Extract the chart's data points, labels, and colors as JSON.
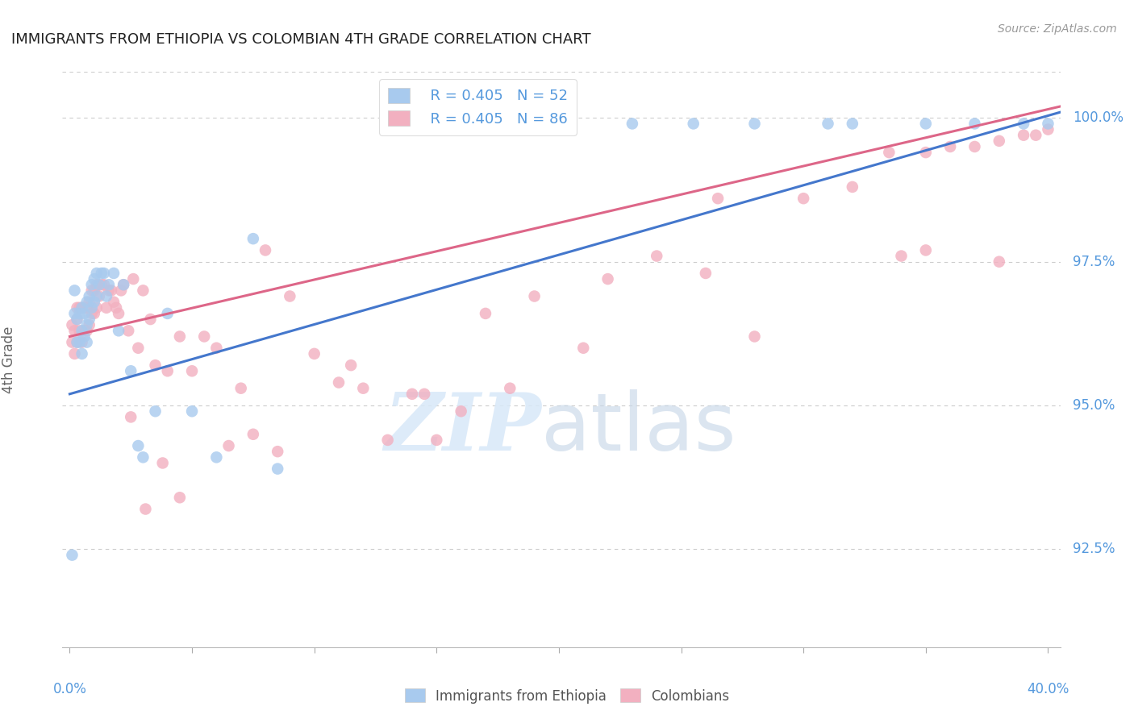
{
  "title": "IMMIGRANTS FROM ETHIOPIA VS COLOMBIAN 4TH GRADE CORRELATION CHART",
  "source": "Source: ZipAtlas.com",
  "ylabel": "4th Grade",
  "ytick_labels": [
    "100.0%",
    "97.5%",
    "95.0%",
    "92.5%"
  ],
  "ytick_vals": [
    1.0,
    0.975,
    0.95,
    0.925
  ],
  "ymin": 0.908,
  "ymax": 1.008,
  "xmin": -0.003,
  "xmax": 0.405,
  "legend_blue_R": "R = 0.405",
  "legend_blue_N": "N = 52",
  "legend_pink_R": "R = 0.405",
  "legend_pink_N": "N = 86",
  "watermark_zip": "ZIP",
  "watermark_atlas": "atlas",
  "blue_color": "#A8CAEE",
  "pink_color": "#F2B0C0",
  "blue_line_color": "#4477CC",
  "pink_line_color": "#DD6688",
  "tick_color": "#5599DD",
  "background_color": "#FFFFFF",
  "grid_color": "#CCCCCC",
  "blue_scatter_x": [
    0.001,
    0.002,
    0.002,
    0.003,
    0.003,
    0.004,
    0.004,
    0.005,
    0.005,
    0.005,
    0.006,
    0.006,
    0.007,
    0.007,
    0.007,
    0.008,
    0.008,
    0.009,
    0.009,
    0.01,
    0.01,
    0.011,
    0.011,
    0.012,
    0.013,
    0.014,
    0.015,
    0.016,
    0.018,
    0.02,
    0.022,
    0.025,
    0.028,
    0.03,
    0.035,
    0.04,
    0.05,
    0.06,
    0.075,
    0.085,
    0.16,
    0.175,
    0.2,
    0.23,
    0.255,
    0.28,
    0.31,
    0.32,
    0.35,
    0.37,
    0.39,
    0.4
  ],
  "blue_scatter_y": [
    0.924,
    0.966,
    0.97,
    0.961,
    0.965,
    0.961,
    0.966,
    0.959,
    0.963,
    0.967,
    0.962,
    0.966,
    0.961,
    0.964,
    0.968,
    0.965,
    0.969,
    0.967,
    0.971,
    0.968,
    0.972,
    0.969,
    0.973,
    0.971,
    0.973,
    0.973,
    0.969,
    0.971,
    0.973,
    0.963,
    0.971,
    0.956,
    0.943,
    0.941,
    0.949,
    0.966,
    0.949,
    0.941,
    0.979,
    0.939,
    0.999,
    0.999,
    0.999,
    0.999,
    0.999,
    0.999,
    0.999,
    0.999,
    0.999,
    0.999,
    0.999,
    0.999
  ],
  "pink_scatter_x": [
    0.001,
    0.001,
    0.002,
    0.002,
    0.003,
    0.003,
    0.003,
    0.004,
    0.004,
    0.005,
    0.005,
    0.006,
    0.006,
    0.007,
    0.007,
    0.008,
    0.008,
    0.009,
    0.009,
    0.01,
    0.01,
    0.011,
    0.011,
    0.012,
    0.013,
    0.014,
    0.015,
    0.016,
    0.017,
    0.018,
    0.019,
    0.02,
    0.021,
    0.022,
    0.024,
    0.026,
    0.028,
    0.03,
    0.033,
    0.04,
    0.045,
    0.05,
    0.06,
    0.07,
    0.08,
    0.09,
    0.1,
    0.12,
    0.15,
    0.18,
    0.21,
    0.24,
    0.265,
    0.28,
    0.3,
    0.32,
    0.335,
    0.35,
    0.36,
    0.37,
    0.38,
    0.39,
    0.395,
    0.4,
    0.035,
    0.055,
    0.13,
    0.16,
    0.115,
    0.145,
    0.35,
    0.38,
    0.34,
    0.26,
    0.22,
    0.19,
    0.17,
    0.14,
    0.11,
    0.085,
    0.075,
    0.065,
    0.045,
    0.038,
    0.031,
    0.025
  ],
  "pink_scatter_y": [
    0.961,
    0.964,
    0.959,
    0.963,
    0.961,
    0.965,
    0.967,
    0.963,
    0.967,
    0.961,
    0.967,
    0.963,
    0.967,
    0.963,
    0.967,
    0.964,
    0.968,
    0.966,
    0.97,
    0.966,
    0.97,
    0.967,
    0.971,
    0.969,
    0.971,
    0.971,
    0.967,
    0.97,
    0.97,
    0.968,
    0.967,
    0.966,
    0.97,
    0.971,
    0.963,
    0.972,
    0.96,
    0.97,
    0.965,
    0.956,
    0.962,
    0.956,
    0.96,
    0.953,
    0.977,
    0.969,
    0.959,
    0.953,
    0.944,
    0.953,
    0.96,
    0.976,
    0.986,
    0.962,
    0.986,
    0.988,
    0.994,
    0.994,
    0.995,
    0.995,
    0.996,
    0.997,
    0.997,
    0.998,
    0.957,
    0.962,
    0.944,
    0.949,
    0.957,
    0.952,
    0.977,
    0.975,
    0.976,
    0.973,
    0.972,
    0.969,
    0.966,
    0.952,
    0.954,
    0.942,
    0.945,
    0.943,
    0.934,
    0.94,
    0.932,
    0.948
  ],
  "blue_line_x0": 0.0,
  "blue_line_y0": 0.952,
  "blue_line_x1": 0.405,
  "blue_line_y1": 1.001,
  "pink_line_x0": 0.0,
  "pink_line_y0": 0.962,
  "pink_line_x1": 0.405,
  "pink_line_y1": 1.002
}
